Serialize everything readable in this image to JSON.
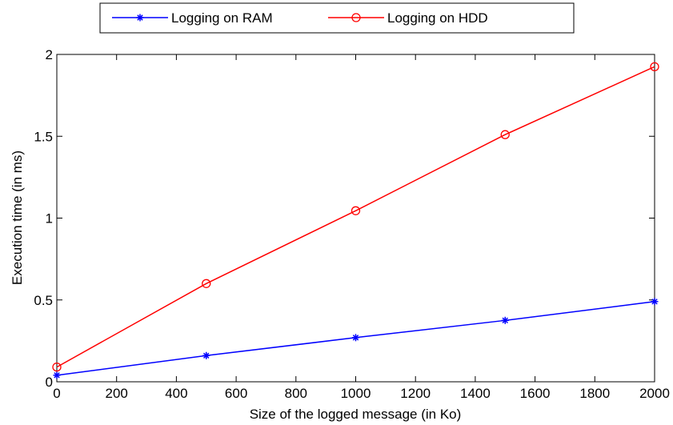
{
  "chart_data": {
    "type": "line",
    "xlabel": "Size of the logged message (in Ko)",
    "ylabel": "Execution time (in ms)",
    "xlim": [
      0,
      2000
    ],
    "ylim": [
      0,
      2
    ],
    "xticks": [
      0,
      200,
      400,
      600,
      800,
      1000,
      1200,
      1400,
      1600,
      1800,
      2000
    ],
    "xtick_labels": [
      "0",
      "200",
      "400",
      "600",
      "800",
      "1000",
      "1200",
      "1400",
      "1600",
      "1800",
      "2000"
    ],
    "yticks": [
      0,
      0.5,
      1,
      1.5,
      2
    ],
    "ytick_labels": [
      "0",
      "0.5",
      "1",
      "1.5",
      "2"
    ],
    "grid": false,
    "legend_position": "top-center",
    "x": [
      0,
      500,
      1000,
      1500,
      2000
    ],
    "series": [
      {
        "name": "Logging on RAM",
        "values": [
          0.04,
          0.16,
          0.27,
          0.375,
          0.49
        ],
        "color": "#0000ff",
        "marker": "asterisk"
      },
      {
        "name": "Logging on HDD",
        "values": [
          0.09,
          0.6,
          1.045,
          1.51,
          1.925
        ],
        "color": "#ff0000",
        "marker": "circle"
      }
    ]
  }
}
